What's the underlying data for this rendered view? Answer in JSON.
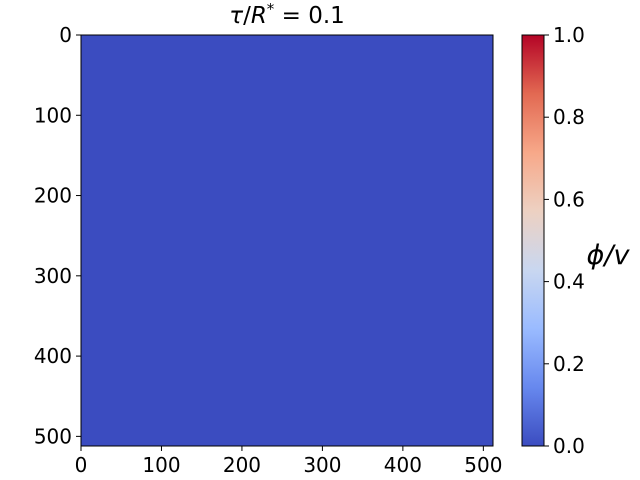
{
  "chart_data": {
    "type": "heatmap",
    "title_parts": {
      "tau": "τ",
      "slash": "/",
      "r": "R",
      "star": "*",
      "rest": " = 0.1"
    },
    "x_ticks": [
      "0",
      "100",
      "200",
      "300",
      "400",
      "500"
    ],
    "y_ticks": [
      "0",
      "100",
      "200",
      "300",
      "400",
      "500"
    ],
    "x_tick_values": [
      0,
      100,
      200,
      300,
      400,
      500
    ],
    "y_tick_values": [
      0,
      100,
      200,
      300,
      400,
      500
    ],
    "xlim": [
      0,
      512
    ],
    "ylim": [
      512,
      0
    ],
    "field_value": 0.0,
    "grid": false,
    "colorbar": {
      "label": "ϕ/v",
      "cmap": "coolwarm",
      "range": [
        0.0,
        1.0
      ],
      "ticks": [
        "0.0",
        "0.2",
        "0.4",
        "0.6",
        "0.8",
        "1.0"
      ],
      "tick_values": [
        0.0,
        0.2,
        0.4,
        0.6,
        0.8,
        1.0
      ],
      "placement": "right"
    },
    "colors": {
      "field": "#3b4cc0",
      "cmap_stops": [
        "#3b4cc0",
        "#6788ee",
        "#9abbff",
        "#c9d7f0",
        "#edd1c2",
        "#f7a889",
        "#e26952",
        "#b40426"
      ]
    }
  }
}
